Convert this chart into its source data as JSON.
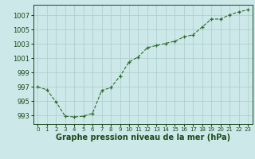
{
  "x": [
    0,
    1,
    2,
    3,
    4,
    5,
    6,
    7,
    8,
    9,
    10,
    11,
    12,
    13,
    14,
    15,
    16,
    17,
    18,
    19,
    20,
    21,
    22,
    23
  ],
  "y": [
    997.0,
    996.6,
    994.9,
    992.9,
    992.8,
    992.9,
    993.3,
    996.5,
    996.9,
    998.5,
    1000.5,
    1001.2,
    1002.5,
    1002.8,
    1003.1,
    1003.4,
    1004.0,
    1004.3,
    1005.4,
    1006.5,
    1006.5,
    1007.1,
    1007.5,
    1007.8
  ],
  "line_color": "#2d6a2d",
  "marker_color": "#2d6a2d",
  "bg_color": "#cce8e8",
  "grid_color": "#aacccc",
  "xlabel": "Graphe pression niveau de la mer (hPa)",
  "xlabel_color": "#1a4a1a",
  "tick_color": "#1a4a1a",
  "ylim": [
    991.8,
    1008.5
  ],
  "yticks": [
    993,
    995,
    997,
    999,
    1001,
    1003,
    1005,
    1007
  ],
  "xlim": [
    -0.5,
    23.5
  ],
  "xlabel_fontsize": 7.0,
  "tick_fontsize": 6.0,
  "xtick_fontsize": 5.0
}
